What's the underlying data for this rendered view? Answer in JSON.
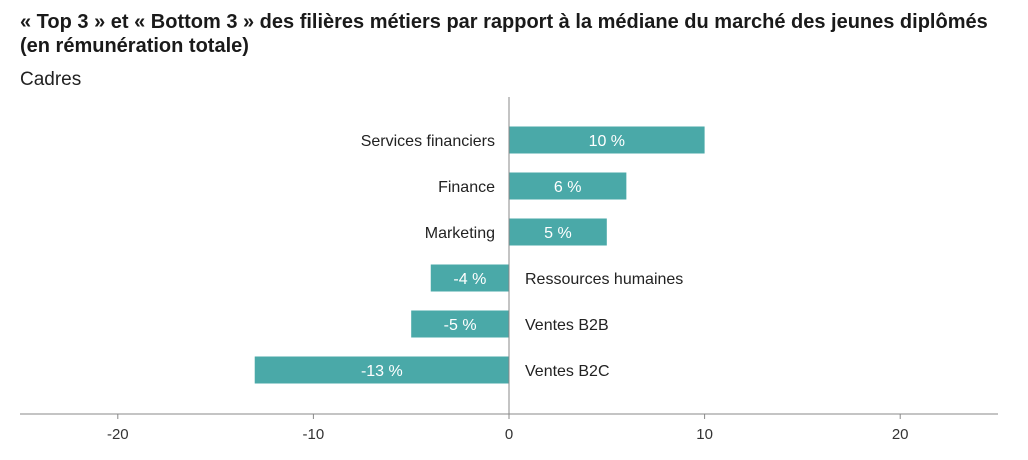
{
  "header": {
    "title": "« Top 3 » et « Bottom 3 » des filières métiers par rapport à la médiane du marché des jeunes diplômés (en rémunération totale)",
    "subtitle": "Cadres"
  },
  "colors": {
    "bar": "#4aa9a8",
    "axis": "#888888",
    "text": "#222222"
  },
  "chart_data": {
    "type": "bar",
    "orientation": "horizontal",
    "title": "« Top 3 » et « Bottom 3 » des filières métiers par rapport à la médiane du marché des jeunes diplômés (en rémunération totale)",
    "subtitle": "Cadres",
    "categories": [
      "Services financiers",
      "Finance",
      "Marketing",
      "Ressources humaines",
      "Ventes B2B",
      "Ventes B2C"
    ],
    "values": [
      10,
      6,
      5,
      -4,
      -5,
      -13
    ],
    "data_labels": [
      "10 %",
      "6 %",
      "5 %",
      "-4 %",
      "-5 %",
      "-13 %"
    ],
    "xlim": [
      -25,
      25
    ],
    "xticks": [
      -20,
      -10,
      0,
      10,
      20
    ],
    "xlabel": "",
    "ylabel": "",
    "grid": false
  }
}
